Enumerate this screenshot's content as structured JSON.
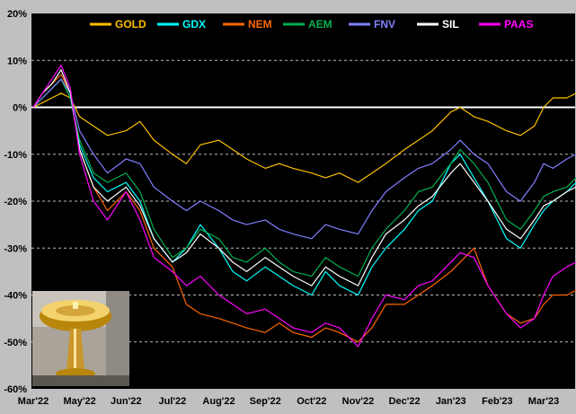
{
  "chart_data": {
    "type": "line",
    "title": "",
    "xlabel": "",
    "ylabel": "",
    "ylim": [
      -60,
      20
    ],
    "y_ticks": [
      20,
      10,
      0,
      -10,
      -20,
      -30,
      -40,
      -50,
      -60
    ],
    "y_tick_labels": [
      "20%",
      "10%",
      "0%",
      "-10%",
      "-20%",
      "-30%",
      "-40%",
      "-50%",
      "-60%"
    ],
    "x_tick_labels": [
      "Mar'22",
      "May'22",
      "Jun'22",
      "Jul'22",
      "Aug'22",
      "Sep'22",
      "Oct'22",
      "Nov'22",
      "Dec'22",
      "Jan'23",
      "Feb'23",
      "Mar'23"
    ],
    "x_tick_pos": [
      0,
      1,
      2,
      3,
      4,
      5,
      6,
      7,
      8,
      9,
      10,
      11
    ],
    "xlim": [
      0,
      11.9
    ],
    "grid": "horizontal dashed",
    "legend_position": "top",
    "plot_background": "#000000",
    "frame_background": "#c0c0c0",
    "zero_line_color": "#ffffff",
    "inset_image": "gold-fountain-photo",
    "series": [
      {
        "name": "GOLD",
        "color": "#ffc000",
        "x": [
          0,
          0.2,
          0.4,
          0.6,
          0.8,
          1.0,
          1.3,
          1.6,
          2.0,
          2.3,
          2.6,
          3.0,
          3.3,
          3.6,
          4.0,
          4.3,
          4.6,
          5.0,
          5.3,
          5.6,
          6.0,
          6.3,
          6.6,
          7.0,
          7.3,
          7.6,
          8.0,
          8.3,
          8.6,
          9.0,
          9.2,
          9.5,
          9.8,
          10.2,
          10.5,
          10.8,
          11.0,
          11.2,
          11.5,
          11.7
        ],
        "y": [
          0,
          1,
          2,
          3,
          2,
          -2,
          -4,
          -6,
          -5,
          -3,
          -7,
          -10,
          -12,
          -8,
          -7,
          -9,
          -11,
          -13,
          -12,
          -13,
          -14,
          -15,
          -14,
          -16,
          -14,
          -12,
          -9,
          -7,
          -5,
          -1,
          0,
          -2,
          -3,
          -5,
          -6,
          -4,
          0,
          2,
          2,
          3
        ]
      },
      {
        "name": "GDX",
        "color": "#00ffff",
        "x": [
          0,
          0.2,
          0.4,
          0.6,
          0.8,
          1.0,
          1.3,
          1.6,
          2.0,
          2.3,
          2.6,
          3.0,
          3.3,
          3.6,
          4.0,
          4.3,
          4.6,
          5.0,
          5.3,
          5.6,
          6.0,
          6.3,
          6.6,
          7.0,
          7.3,
          7.6,
          8.0,
          8.3,
          8.6,
          9.0,
          9.2,
          9.5,
          9.8,
          10.2,
          10.5,
          10.8,
          11.0,
          11.2,
          11.5,
          11.7
        ],
        "y": [
          0,
          2,
          4,
          6,
          2,
          -8,
          -15,
          -18,
          -16,
          -20,
          -28,
          -33,
          -30,
          -25,
          -30,
          -35,
          -37,
          -34,
          -36,
          -38,
          -40,
          -35,
          -38,
          -40,
          -34,
          -30,
          -26,
          -22,
          -20,
          -12,
          -10,
          -15,
          -20,
          -28,
          -30,
          -25,
          -22,
          -20,
          -18,
          -16
        ]
      },
      {
        "name": "NEM",
        "color": "#ff6600",
        "x": [
          0,
          0.2,
          0.4,
          0.6,
          0.8,
          1.0,
          1.3,
          1.6,
          2.0,
          2.3,
          2.6,
          3.0,
          3.3,
          3.6,
          4.0,
          4.3,
          4.6,
          5.0,
          5.3,
          5.6,
          6.0,
          6.3,
          6.6,
          7.0,
          7.3,
          7.6,
          8.0,
          8.3,
          8.6,
          9.0,
          9.2,
          9.5,
          9.8,
          10.2,
          10.5,
          10.8,
          11.0,
          11.2,
          11.5,
          11.7
        ],
        "y": [
          0,
          3,
          5,
          7,
          3,
          -9,
          -17,
          -22,
          -18,
          -22,
          -30,
          -34,
          -42,
          -44,
          -45,
          -46,
          -47,
          -48,
          -46,
          -48,
          -49,
          -47,
          -48,
          -50,
          -47,
          -42,
          -42,
          -40,
          -38,
          -35,
          -33,
          -30,
          -38,
          -44,
          -46,
          -45,
          -42,
          -40,
          -40,
          -39
        ]
      },
      {
        "name": "AEM",
        "color": "#00b050",
        "x": [
          0,
          0.2,
          0.4,
          0.6,
          0.8,
          1.0,
          1.3,
          1.6,
          2.0,
          2.3,
          2.6,
          3.0,
          3.3,
          3.6,
          4.0,
          4.3,
          4.6,
          5.0,
          5.3,
          5.6,
          6.0,
          6.3,
          6.6,
          7.0,
          7.3,
          7.6,
          8.0,
          8.3,
          8.6,
          9.0,
          9.2,
          9.5,
          9.8,
          10.2,
          10.5,
          10.8,
          11.0,
          11.2,
          11.5,
          11.7
        ],
        "y": [
          0,
          2,
          4,
          6,
          2,
          -7,
          -14,
          -16,
          -14,
          -18,
          -26,
          -32,
          -30,
          -26,
          -28,
          -32,
          -33,
          -30,
          -33,
          -35,
          -36,
          -32,
          -34,
          -36,
          -30,
          -26,
          -22,
          -18,
          -17,
          -12,
          -9,
          -12,
          -16,
          -24,
          -26,
          -22,
          -19,
          -18,
          -17,
          -15
        ]
      },
      {
        "name": "FNV",
        "color": "#8080ff",
        "x": [
          0,
          0.2,
          0.4,
          0.6,
          0.8,
          1.0,
          1.3,
          1.6,
          2.0,
          2.3,
          2.6,
          3.0,
          3.3,
          3.6,
          4.0,
          4.3,
          4.6,
          5.0,
          5.3,
          5.6,
          6.0,
          6.3,
          6.6,
          7.0,
          7.3,
          7.6,
          8.0,
          8.3,
          8.6,
          9.0,
          9.2,
          9.5,
          9.8,
          10.2,
          10.5,
          10.8,
          11.0,
          11.2,
          11.5,
          11.7
        ],
        "y": [
          0,
          2,
          4,
          6,
          3,
          -5,
          -10,
          -14,
          -11,
          -12,
          -17,
          -20,
          -22,
          -20,
          -22,
          -24,
          -25,
          -24,
          -26,
          -27,
          -28,
          -25,
          -26,
          -27,
          -22,
          -18,
          -15,
          -13,
          -12,
          -9,
          -7,
          -10,
          -12,
          -18,
          -20,
          -16,
          -12,
          -13,
          -11,
          -10
        ]
      },
      {
        "name": "SIL",
        "color": "#ffffff",
        "x": [
          0,
          0.2,
          0.4,
          0.6,
          0.8,
          1.0,
          1.3,
          1.6,
          2.0,
          2.3,
          2.6,
          3.0,
          3.3,
          3.6,
          4.0,
          4.3,
          4.6,
          5.0,
          5.3,
          5.6,
          6.0,
          6.3,
          6.6,
          7.0,
          7.3,
          7.6,
          8.0,
          8.3,
          8.6,
          9.0,
          9.2,
          9.5,
          9.8,
          10.2,
          10.5,
          10.8,
          11.0,
          11.2,
          11.5,
          11.7
        ],
        "y": [
          0,
          3,
          5,
          8,
          3,
          -9,
          -17,
          -20,
          -17,
          -21,
          -28,
          -33,
          -31,
          -27,
          -30,
          -33,
          -35,
          -32,
          -34,
          -36,
          -38,
          -34,
          -36,
          -38,
          -32,
          -27,
          -24,
          -21,
          -19,
          -14,
          -12,
          -16,
          -20,
          -26,
          -28,
          -24,
          -21,
          -20,
          -18,
          -17
        ]
      },
      {
        "name": "PAAS",
        "color": "#ff00ff",
        "x": [
          0,
          0.2,
          0.4,
          0.6,
          0.8,
          1.0,
          1.3,
          1.6,
          2.0,
          2.3,
          2.6,
          3.0,
          3.3,
          3.6,
          4.0,
          4.3,
          4.6,
          5.0,
          5.3,
          5.6,
          6.0,
          6.3,
          6.6,
          7.0,
          7.3,
          7.6,
          8.0,
          8.3,
          8.6,
          9.0,
          9.2,
          9.5,
          9.8,
          10.2,
          10.5,
          10.8,
          11.0,
          11.2,
          11.5,
          11.7
        ],
        "y": [
          0,
          3,
          6,
          9,
          4,
          -10,
          -20,
          -24,
          -18,
          -24,
          -32,
          -35,
          -38,
          -36,
          -40,
          -42,
          -44,
          -43,
          -45,
          -47,
          -48,
          -46,
          -47,
          -51,
          -45,
          -40,
          -41,
          -38,
          -37,
          -33,
          -31,
          -32,
          -38,
          -44,
          -47,
          -45,
          -40,
          -36,
          -34,
          -33
        ]
      }
    ]
  }
}
